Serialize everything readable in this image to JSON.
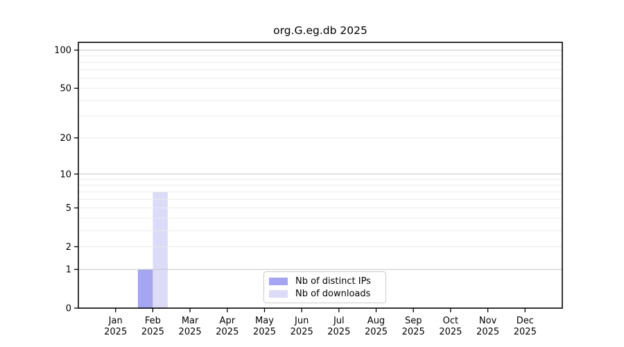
{
  "chart_data": {
    "type": "bar",
    "title": "org.G.eg.db 2025",
    "categories": [
      "Jan",
      "Feb",
      "Mar",
      "Apr",
      "May",
      "Jun",
      "Jul",
      "Aug",
      "Sep",
      "Oct",
      "Nov",
      "Dec"
    ],
    "x_tick_second_line": "2025",
    "series": [
      {
        "name": "Nb of distinct IPs",
        "color": "#a5a5f2",
        "values": [
          0,
          1,
          0,
          0,
          0,
          0,
          0,
          0,
          0,
          0,
          0,
          0
        ]
      },
      {
        "name": "Nb of downloads",
        "color": "#dcdcf8",
        "values": [
          0,
          7,
          0,
          0,
          0,
          0,
          0,
          0,
          0,
          0,
          0,
          0
        ]
      }
    ],
    "yscale": "log1p",
    "ylim": [
      0,
      115
    ],
    "y_tick_labels": [
      0,
      1,
      2,
      5,
      10,
      20,
      50,
      100
    ],
    "y_minor_gridlines": [
      3,
      4,
      6,
      7,
      8,
      9,
      30,
      40,
      60,
      70,
      80,
      90
    ],
    "grid": "both",
    "legend_position": "lower center",
    "colors": {
      "axis": "#000000",
      "tick_text": "#000000",
      "major_grid": "#c6c6c6",
      "minor_grid": "#ebebeb",
      "legend_border": "#cccccc",
      "background": "#ffffff"
    }
  }
}
